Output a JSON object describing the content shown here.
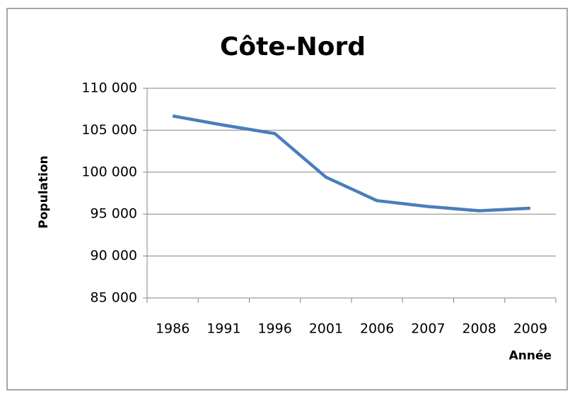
{
  "chart_data": {
    "type": "line",
    "title": "Côte-Nord",
    "y_label": "Population",
    "x_label": "Année",
    "categories": [
      "1986",
      "1991",
      "1996",
      "2001",
      "2006",
      "2007",
      "2008",
      "2009"
    ],
    "series": [
      {
        "name": "Population",
        "color": "#4a7ebb",
        "values": [
          106700,
          105600,
          104600,
          99400,
          96600,
          95900,
          95400,
          95700
        ]
      }
    ],
    "ylim": [
      85000,
      110000
    ],
    "yticks": [
      {
        "value": 85000,
        "label": "85 000"
      },
      {
        "value": 90000,
        "label": "90 000"
      },
      {
        "value": 95000,
        "label": "95 000"
      },
      {
        "value": 100000,
        "label": "100 000"
      },
      {
        "value": 105000,
        "label": "105 000"
      },
      {
        "value": 110000,
        "label": "110 000"
      }
    ],
    "grid": true
  }
}
